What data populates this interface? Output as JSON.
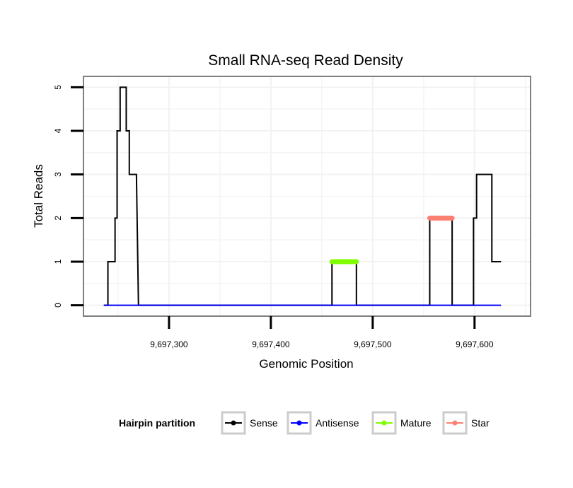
{
  "chart_data": {
    "type": "line",
    "title": "Small RNA-seq Read Density",
    "xlabel": "Genomic Position",
    "ylabel": "Total Reads",
    "xlim": [
      9697216,
      9697655
    ],
    "ylim": [
      -0.25,
      5.25
    ],
    "x_ticks": [
      9697300,
      9697400,
      9697500,
      9697600
    ],
    "x_tick_labels": [
      "9,697,300",
      "9,697,400",
      "9,697,500",
      "9,697,600"
    ],
    "y_ticks": [
      0,
      1,
      2,
      3,
      4,
      5
    ],
    "y_tick_labels": [
      "0",
      "1",
      "2",
      "3",
      "4",
      "5"
    ],
    "grid": true,
    "legend": {
      "title": "Hairpin partition",
      "position": "bottom",
      "entries": [
        {
          "label": "Sense",
          "color": "#000000"
        },
        {
          "label": "Antisense",
          "color": "#0000ff"
        },
        {
          "label": "Mature",
          "color": "#7fff00"
        },
        {
          "label": "Star",
          "color": "#fa8072"
        }
      ]
    },
    "series": [
      {
        "name": "Sense",
        "color": "#000000",
        "points": [
          [
            9697236,
            0
          ],
          [
            9697240,
            0
          ],
          [
            9697240,
            1
          ],
          [
            9697247,
            1
          ],
          [
            9697247,
            2
          ],
          [
            9697249,
            2
          ],
          [
            9697249,
            4
          ],
          [
            9697252,
            4
          ],
          [
            9697252,
            5
          ],
          [
            9697258,
            5
          ],
          [
            9697258,
            4
          ],
          [
            9697261,
            4
          ],
          [
            9697261,
            3
          ],
          [
            9697268,
            3
          ],
          [
            9697270,
            0
          ],
          [
            9697460,
            0
          ],
          [
            9697460,
            1
          ],
          [
            9697484,
            1
          ],
          [
            9697484,
            0
          ],
          [
            9697556,
            0
          ],
          [
            9697556,
            2
          ],
          [
            9697578,
            2
          ],
          [
            9697578,
            0
          ],
          [
            9697599,
            0
          ],
          [
            9697599,
            2
          ],
          [
            9697602,
            2
          ],
          [
            9697602,
            3
          ],
          [
            9697617,
            3
          ],
          [
            9697617,
            1
          ],
          [
            9697626,
            1
          ]
        ]
      },
      {
        "name": "Antisense",
        "color": "#0000ff",
        "points": [
          [
            9697236,
            0
          ],
          [
            9697626,
            0
          ]
        ]
      },
      {
        "name": "Mature",
        "color": "#7fff00",
        "points": [
          [
            9697460,
            1
          ],
          [
            9697484,
            1
          ]
        ]
      },
      {
        "name": "Star",
        "color": "#fa8072",
        "points": [
          [
            9697556,
            2
          ],
          [
            9697578,
            2
          ]
        ]
      }
    ]
  }
}
